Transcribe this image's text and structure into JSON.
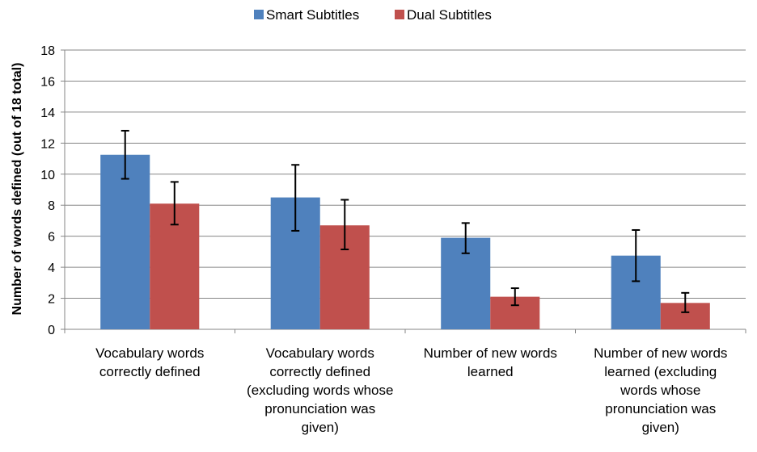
{
  "chart_data": {
    "type": "bar",
    "title": "",
    "xlabel": "",
    "ylabel": "Number of words defined (out of 18 total)",
    "ylim": [
      0,
      18
    ],
    "yticks": [
      0,
      2,
      4,
      6,
      8,
      10,
      12,
      14,
      16,
      18
    ],
    "grid": true,
    "legend_position": "top",
    "categories": [
      [
        "Vocabulary words",
        "correctly defined"
      ],
      [
        "Vocabulary words",
        "correctly defined",
        "(excluding words whose",
        "pronunciation was",
        "given)"
      ],
      [
        "Number of new words",
        "learned"
      ],
      [
        "Number of new words",
        "learned (excluding",
        "words whose",
        "pronunciation was",
        "given)"
      ]
    ],
    "series": [
      {
        "name": "Smart Subtitles",
        "color": "#4f81bd",
        "values": [
          11.25,
          8.5,
          5.9,
          4.75
        ],
        "error_low": [
          9.7,
          6.35,
          4.9,
          3.1
        ],
        "error_high": [
          12.8,
          10.6,
          6.85,
          6.4
        ]
      },
      {
        "name": "Dual Subtitles",
        "color": "#c0504d",
        "values": [
          8.1,
          6.7,
          2.1,
          1.7
        ],
        "error_low": [
          6.75,
          5.15,
          1.55,
          1.1
        ],
        "error_high": [
          9.5,
          8.35,
          2.65,
          2.35
        ]
      }
    ]
  }
}
